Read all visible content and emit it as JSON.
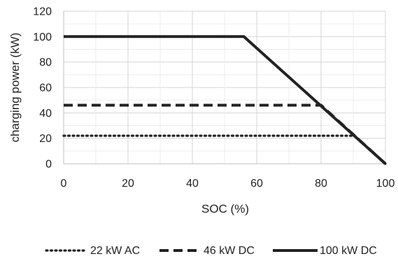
{
  "chart_data": {
    "type": "line",
    "title": "",
    "xlabel": "SOC (%)",
    "ylabel": "charging power (kW)",
    "xlim": [
      0,
      100
    ],
    "ylim": [
      0,
      120
    ],
    "xticks": [
      0,
      20,
      40,
      60,
      80,
      100
    ],
    "yticks": [
      0,
      20,
      40,
      60,
      80,
      100,
      120
    ],
    "grid": true,
    "legend_position": "bottom",
    "series": [
      {
        "name": "22 kW AC",
        "style": "dotted",
        "color": "#222222",
        "x": [
          0,
          90.5,
          100
        ],
        "y": [
          22,
          22,
          0
        ]
      },
      {
        "name": "46 kW DC",
        "style": "dashed",
        "color": "#222222",
        "x": [
          0,
          80,
          100
        ],
        "y": [
          46,
          46,
          0
        ]
      },
      {
        "name": "100 kW DC",
        "style": "solid",
        "color": "#222222",
        "x": [
          0,
          56,
          100
        ],
        "y": [
          100,
          100,
          0
        ]
      }
    ]
  }
}
